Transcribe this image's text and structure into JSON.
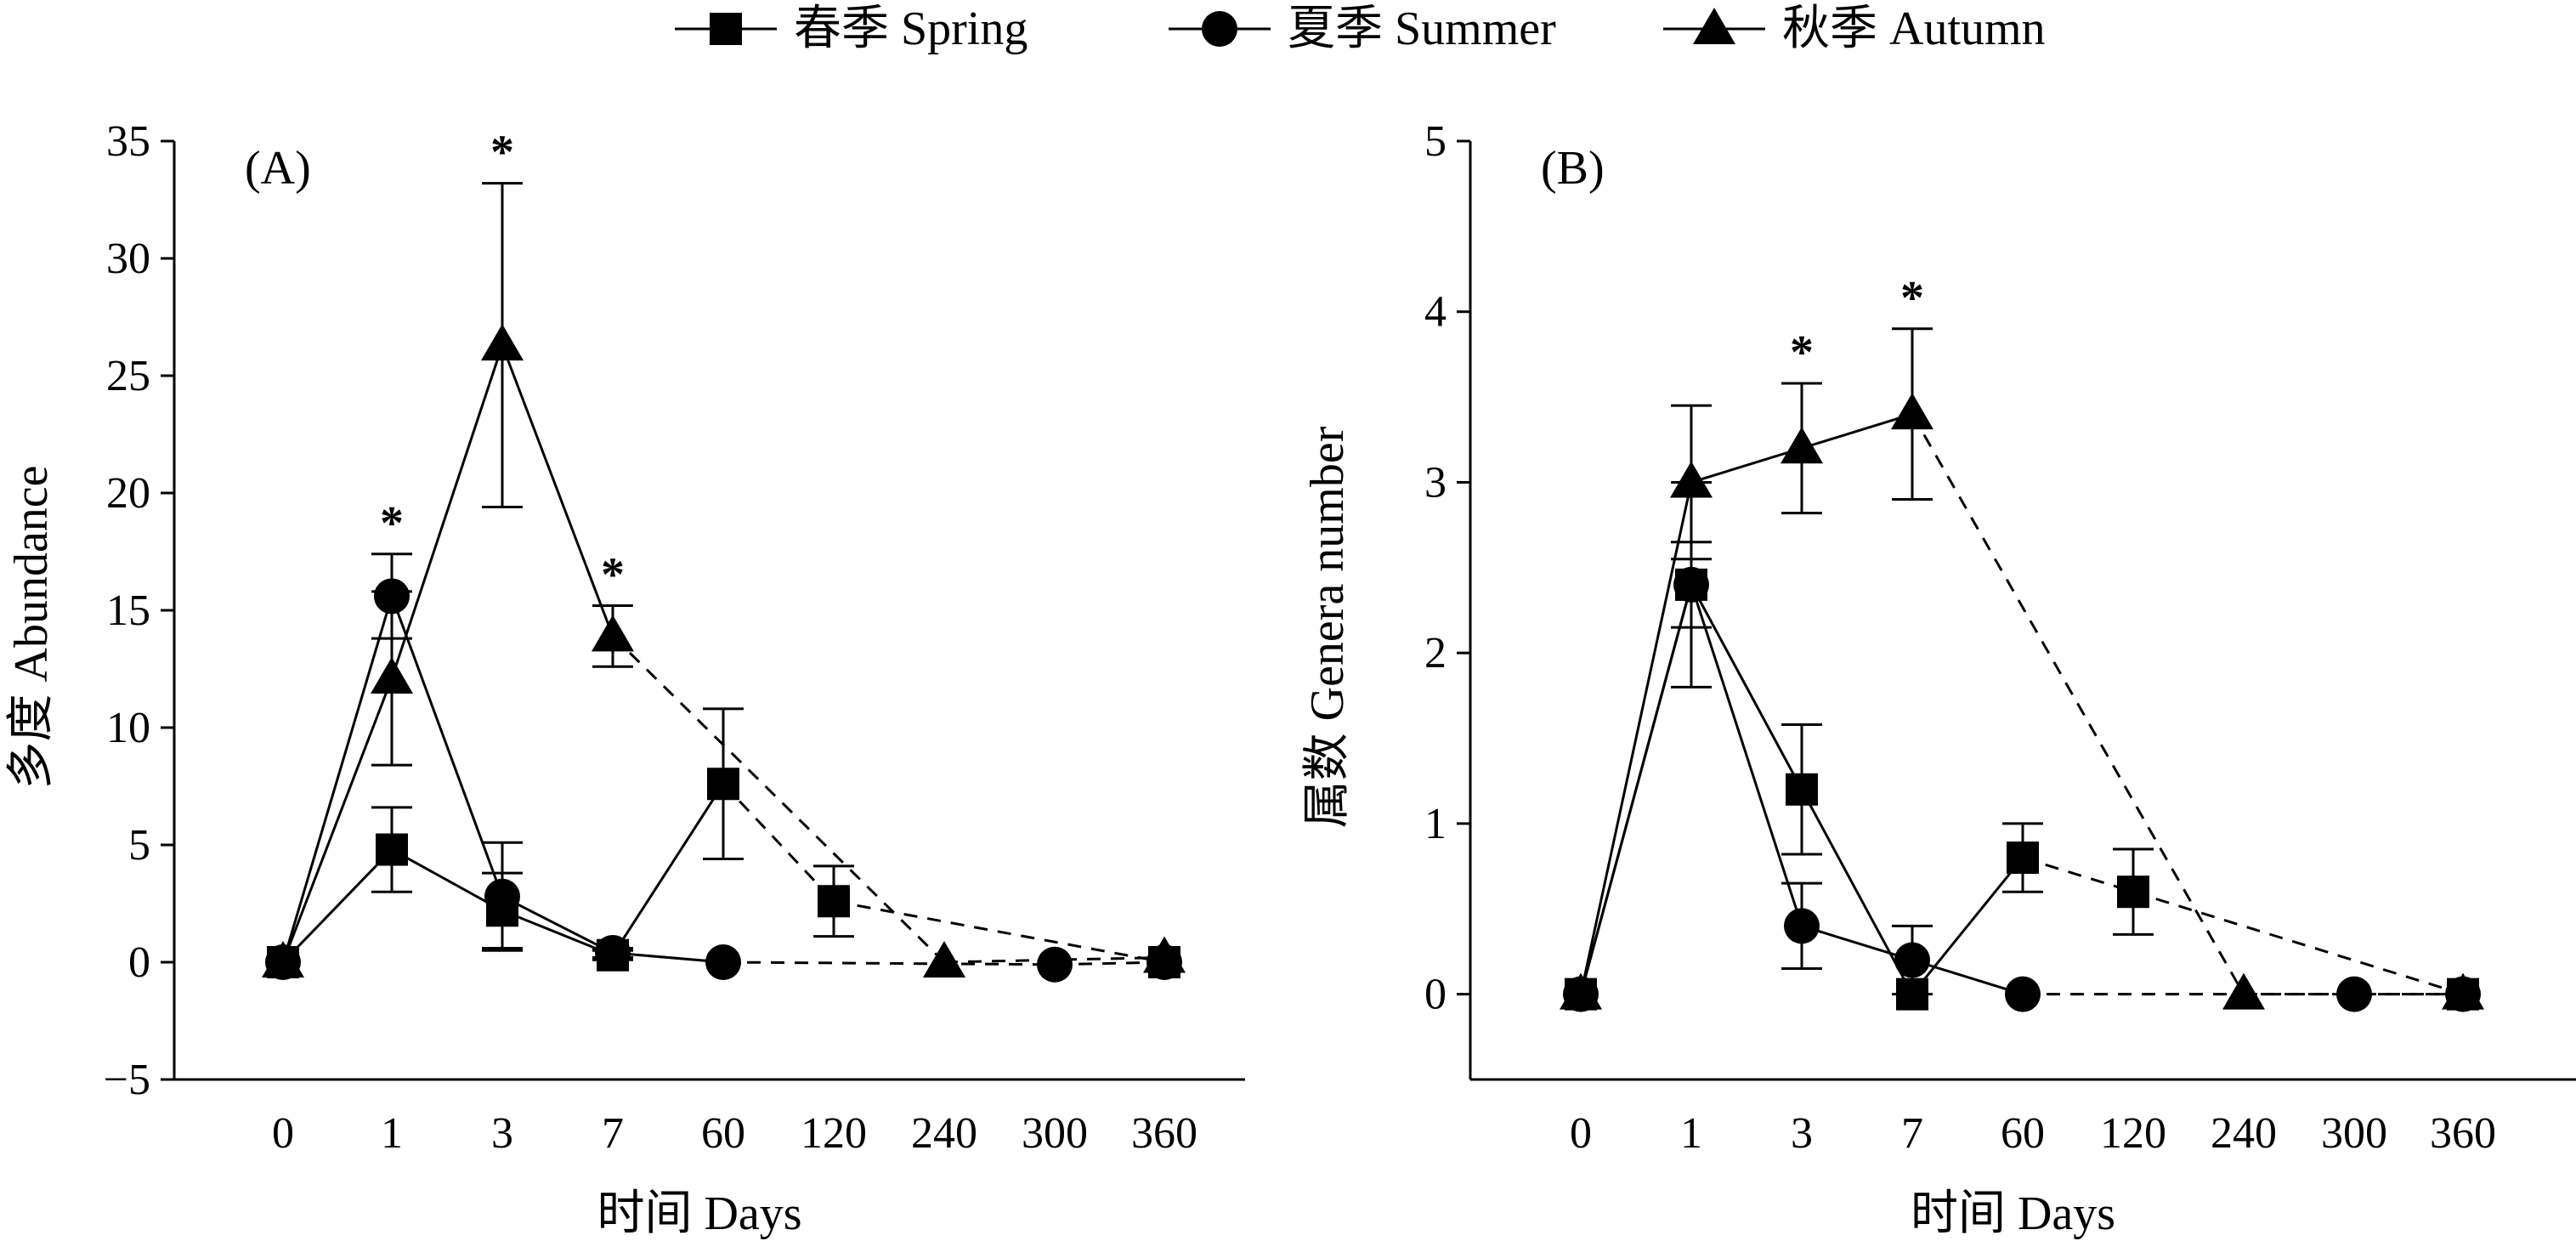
{
  "legend": {
    "items": [
      {
        "label": "春季 Spring",
        "marker": "square"
      },
      {
        "label": "夏季 Summer",
        "marker": "circle"
      },
      {
        "label": "秋季 Autumn",
        "marker": "triangle"
      }
    ]
  },
  "chart_data": [
    {
      "type": "line",
      "panel_label": "(A)",
      "ylabel": "多度 Abundance",
      "xlabel": "时间 Days",
      "categories": [
        "0",
        "1",
        "3",
        "7",
        "60",
        "120",
        "240",
        "300",
        "360"
      ],
      "ylim": [
        -5,
        35
      ],
      "yticks": [
        "−5",
        "0",
        "5",
        "10",
        "15",
        "20",
        "25",
        "30",
        "35"
      ],
      "grid": false,
      "legend_position": "top",
      "series": [
        {
          "name": "春季 Spring",
          "marker": "square",
          "values": [
            0,
            4.8,
            2.2,
            0.3,
            7.6,
            2.6,
            null,
            null,
            0
          ],
          "errors": [
            0,
            1.8,
            1.6,
            0.2,
            3.2,
            1.5,
            null,
            null,
            0
          ]
        },
        {
          "name": "夏季 Summer",
          "marker": "circle",
          "values": [
            0,
            15.6,
            2.8,
            0.4,
            0,
            null,
            null,
            -0.1,
            0
          ],
          "errors": [
            0,
            1.8,
            2.3,
            0.2,
            0,
            null,
            null,
            0,
            0
          ]
        },
        {
          "name": "秋季 Autumn",
          "marker": "triangle",
          "values": [
            0,
            12.1,
            26.3,
            13.9,
            null,
            null,
            0,
            null,
            0.2
          ],
          "errors": [
            0,
            3.7,
            6.9,
            1.3,
            null,
            null,
            0,
            null,
            0
          ]
        }
      ],
      "significance": [
        {
          "category": "1",
          "label": "*"
        },
        {
          "category": "3",
          "label": "*"
        },
        {
          "category": "7",
          "label": "*"
        }
      ]
    },
    {
      "type": "line",
      "panel_label": "(B)",
      "ylabel": "属数 Genera number",
      "xlabel": "时间 Days",
      "categories": [
        "0",
        "1",
        "3",
        "7",
        "60",
        "120",
        "240",
        "300",
        "360"
      ],
      "ylim": [
        -0.5,
        5
      ],
      "yticks": [
        "0",
        "1",
        "2",
        "3",
        "4",
        "5"
      ],
      "grid": false,
      "legend_position": "top",
      "series": [
        {
          "name": "春季 Spring",
          "marker": "square",
          "values": [
            0,
            2.4,
            1.2,
            0,
            0.8,
            0.6,
            null,
            null,
            0
          ],
          "errors": [
            0,
            0.25,
            0.38,
            0,
            0.2,
            0.25,
            null,
            null,
            0
          ]
        },
        {
          "name": "夏季 Summer",
          "marker": "circle",
          "values": [
            0,
            2.4,
            0.4,
            0.2,
            0,
            null,
            null,
            0,
            0
          ],
          "errors": [
            0,
            0.6,
            0.25,
            0.2,
            0,
            null,
            null,
            0,
            0
          ]
        },
        {
          "name": "秋季 Autumn",
          "marker": "triangle",
          "values": [
            0,
            3.0,
            3.2,
            3.4,
            null,
            null,
            0,
            null,
            0
          ],
          "errors": [
            0,
            0.45,
            0.38,
            0.5,
            null,
            null,
            0,
            null,
            0
          ]
        }
      ],
      "significance": [
        {
          "category": "3",
          "label": "*"
        },
        {
          "category": "7",
          "label": "*"
        }
      ]
    }
  ]
}
